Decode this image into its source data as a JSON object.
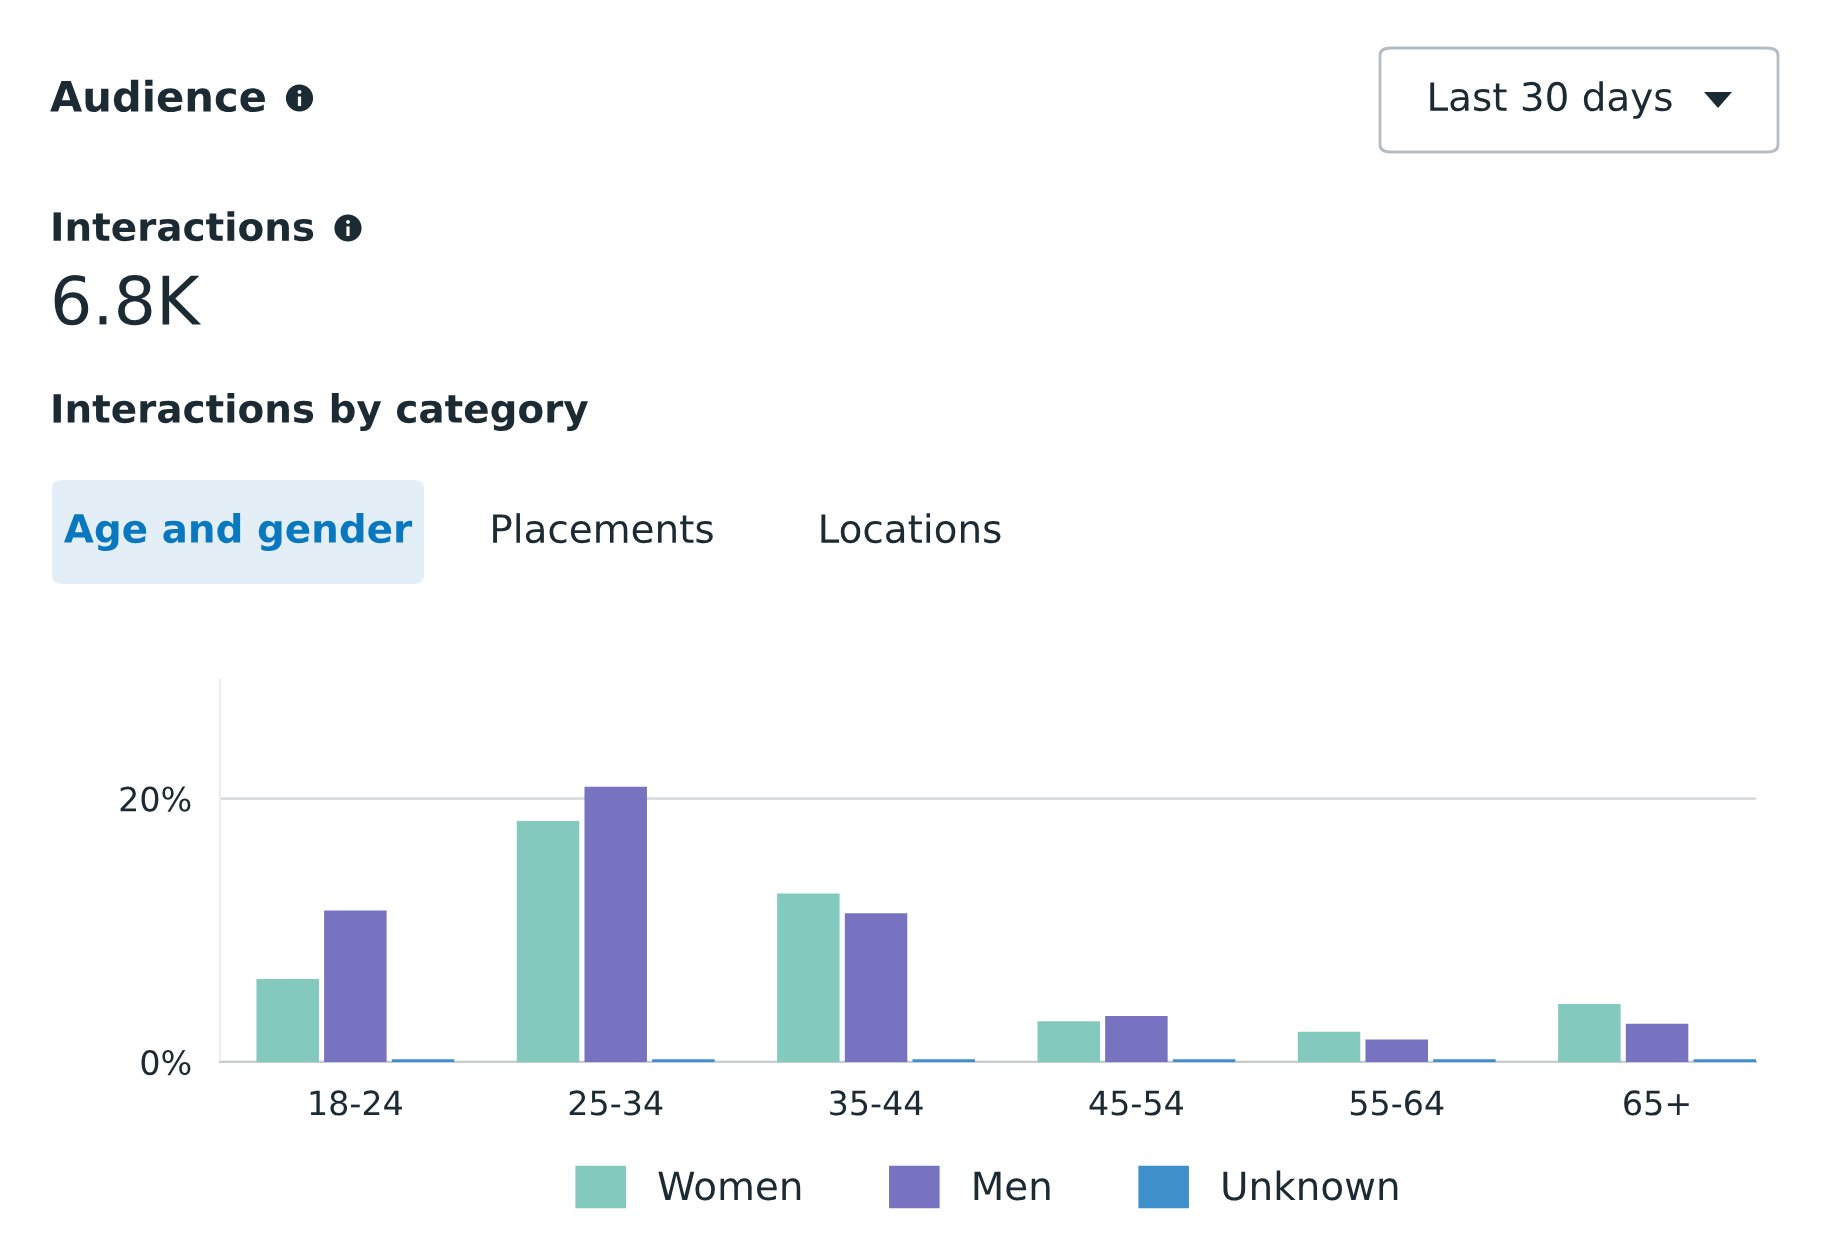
{
  "chart_data": {
    "type": "bar",
    "title": "Audience",
    "annotations": [
      "Last 30 days",
      "Interactions",
      "6.8K",
      "Interactions by category",
      "Age and gender",
      "Placements",
      "Locations"
    ],
    "categories": [
      "18-24",
      "25-34",
      "35-44",
      "45-54",
      "55-64",
      "65+"
    ],
    "series": [
      {
        "name": "Women",
        "color": "#84c9be",
        "values": [
          6.3,
          18.3,
          12.8,
          3.1,
          2.3,
          4.4
        ]
      },
      {
        "name": "Men",
        "color": "#7873c0",
        "values": [
          11.5,
          20.9,
          11.3,
          3.5,
          1.7,
          2.9
        ]
      },
      {
        "name": "Unknown",
        "color": "#3f8fcb",
        "values": [
          0.2,
          0.2,
          0.2,
          0.2,
          0.2,
          0.2
        ]
      }
    ],
    "ylim": [
      0,
      29
    ],
    "yticks": [
      {
        "value": 0,
        "label": "0%"
      },
      {
        "value": 20,
        "label": "20%"
      }
    ],
    "grid": "y",
    "legend": "bottom"
  }
}
